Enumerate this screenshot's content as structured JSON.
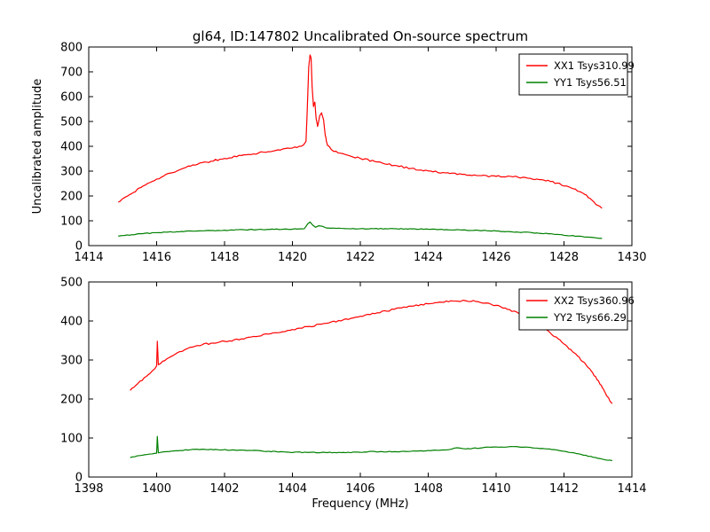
{
  "figure": {
    "title": "gl64, ID:147802 Uncalibrated On-source spectrum",
    "background": "#ffffff",
    "frame_color": "#000000"
  },
  "chart_data": [
    {
      "type": "line",
      "title": "",
      "xlabel": "",
      "ylabel": "Uncalibrated amplitude",
      "xlim": [
        1414,
        1430
      ],
      "ylim": [
        0,
        800
      ],
      "xticks": [
        1414,
        1416,
        1418,
        1420,
        1422,
        1424,
        1426,
        1428,
        1430
      ],
      "yticks": [
        0,
        100,
        200,
        300,
        400,
        500,
        600,
        700,
        800
      ],
      "grid": false,
      "legend_position": "upper right",
      "series": [
        {
          "name": "XX1 Tsys310.99",
          "color": "#ff0000",
          "points": [
            [
              1414.87,
              175
            ],
            [
              1415.2,
              205
            ],
            [
              1415.6,
              240
            ],
            [
              1416.0,
              268
            ],
            [
              1416.4,
              292
            ],
            [
              1416.8,
              312
            ],
            [
              1417.2,
              327
            ],
            [
              1417.6,
              340
            ],
            [
              1418.0,
              351
            ],
            [
              1418.5,
              363
            ],
            [
              1419.0,
              373
            ],
            [
              1419.5,
              383
            ],
            [
              1420.0,
              393
            ],
            [
              1420.2,
              400
            ],
            [
              1420.33,
              406
            ],
            [
              1420.4,
              420
            ],
            [
              1420.44,
              560
            ],
            [
              1420.48,
              720
            ],
            [
              1420.52,
              768
            ],
            [
              1420.55,
              755
            ],
            [
              1420.58,
              640
            ],
            [
              1420.62,
              560
            ],
            [
              1420.66,
              578
            ],
            [
              1420.7,
              510
            ],
            [
              1420.74,
              480
            ],
            [
              1420.8,
              522
            ],
            [
              1420.86,
              535
            ],
            [
              1420.92,
              505
            ],
            [
              1420.97,
              442
            ],
            [
              1421.03,
              405
            ],
            [
              1421.15,
              386
            ],
            [
              1421.35,
              373
            ],
            [
              1421.7,
              361
            ],
            [
              1422.0,
              351
            ],
            [
              1422.5,
              337
            ],
            [
              1423.0,
              323
            ],
            [
              1423.5,
              311
            ],
            [
              1424.0,
              301
            ],
            [
              1424.5,
              293
            ],
            [
              1425.0,
              287
            ],
            [
              1425.5,
              282
            ],
            [
              1426.0,
              279
            ],
            [
              1426.5,
              277
            ],
            [
              1427.0,
              271
            ],
            [
              1427.4,
              264
            ],
            [
              1427.8,
              252
            ],
            [
              1428.2,
              233
            ],
            [
              1428.6,
              207
            ],
            [
              1429.0,
              162
            ],
            [
              1429.12,
              150
            ]
          ]
        },
        {
          "name": "YY1 Tsys56.51",
          "color": "#008000",
          "points": [
            [
              1414.87,
              38
            ],
            [
              1415.4,
              46
            ],
            [
              1416.0,
              52
            ],
            [
              1416.6,
              56
            ],
            [
              1417.2,
              59
            ],
            [
              1418.0,
              62
            ],
            [
              1419.0,
              65
            ],
            [
              1420.0,
              66
            ],
            [
              1420.35,
              68
            ],
            [
              1420.45,
              88
            ],
            [
              1420.52,
              95
            ],
            [
              1420.6,
              82
            ],
            [
              1420.68,
              74
            ],
            [
              1420.78,
              80
            ],
            [
              1420.88,
              78
            ],
            [
              1421.0,
              71
            ],
            [
              1421.5,
              69
            ],
            [
              1422.0,
              68
            ],
            [
              1423.0,
              68
            ],
            [
              1424.0,
              66
            ],
            [
              1425.0,
              63
            ],
            [
              1426.0,
              59
            ],
            [
              1426.6,
              55
            ],
            [
              1427.2,
              51
            ],
            [
              1427.8,
              45
            ],
            [
              1428.4,
              38
            ],
            [
              1429.0,
              30
            ],
            [
              1429.12,
              29
            ]
          ]
        }
      ]
    },
    {
      "type": "line",
      "title": "",
      "xlabel": "Frequency (MHz)",
      "ylabel": "",
      "xlim": [
        1398,
        1414
      ],
      "ylim": [
        0,
        500
      ],
      "xticks": [
        1398,
        1400,
        1402,
        1404,
        1406,
        1408,
        1410,
        1412,
        1414
      ],
      "yticks": [
        0,
        100,
        200,
        300,
        400,
        500
      ],
      "grid": false,
      "legend_position": "upper right",
      "series": [
        {
          "name": "XX2 Tsys360.96",
          "color": "#ff0000",
          "points": [
            [
              1399.22,
              222
            ],
            [
              1399.45,
              240
            ],
            [
              1399.7,
              258
            ],
            [
              1399.95,
              278
            ],
            [
              1400.0,
              285
            ],
            [
              1400.02,
              348
            ],
            [
              1400.05,
              288
            ],
            [
              1400.3,
              303
            ],
            [
              1400.6,
              318
            ],
            [
              1400.9,
              329
            ],
            [
              1401.2,
              337
            ],
            [
              1401.6,
              343
            ],
            [
              1402.0,
              348
            ],
            [
              1402.5,
              354
            ],
            [
              1403.0,
              361
            ],
            [
              1403.5,
              370
            ],
            [
              1404.0,
              378
            ],
            [
              1404.5,
              386
            ],
            [
              1405.0,
              394
            ],
            [
              1405.5,
              403
            ],
            [
              1406.0,
              412
            ],
            [
              1406.5,
              421
            ],
            [
              1407.0,
              430
            ],
            [
              1407.5,
              438
            ],
            [
              1408.0,
              444
            ],
            [
              1408.4,
              448
            ],
            [
              1408.8,
              451
            ],
            [
              1409.1,
              452
            ],
            [
              1409.4,
              450
            ],
            [
              1409.7,
              446
            ],
            [
              1410.0,
              440
            ],
            [
              1410.4,
              429
            ],
            [
              1410.8,
              414
            ],
            [
              1411.2,
              394
            ],
            [
              1411.6,
              369
            ],
            [
              1412.0,
              341
            ],
            [
              1412.4,
              310
            ],
            [
              1412.8,
              272
            ],
            [
              1413.1,
              235
            ],
            [
              1413.35,
              195
            ],
            [
              1413.42,
              188
            ]
          ]
        },
        {
          "name": "YY2 Tsys66.29",
          "color": "#008000",
          "points": [
            [
              1399.22,
              50
            ],
            [
              1399.5,
              55
            ],
            [
              1399.8,
              59
            ],
            [
              1400.0,
              61
            ],
            [
              1400.02,
              104
            ],
            [
              1400.05,
              62
            ],
            [
              1400.3,
              65
            ],
            [
              1400.7,
              68
            ],
            [
              1401.0,
              70
            ],
            [
              1401.4,
              71
            ],
            [
              1401.8,
              70
            ],
            [
              1402.3,
              69
            ],
            [
              1402.8,
              68
            ],
            [
              1403.3,
              66
            ],
            [
              1403.8,
              64
            ],
            [
              1404.5,
              63
            ],
            [
              1405.5,
              63
            ],
            [
              1406.2,
              64
            ],
            [
              1406.35,
              66
            ],
            [
              1406.5,
              64
            ],
            [
              1407.0,
              65
            ],
            [
              1407.5,
              66
            ],
            [
              1408.0,
              68
            ],
            [
              1408.6,
              70
            ],
            [
              1408.85,
              75
            ],
            [
              1409.1,
              72
            ],
            [
              1409.6,
              75
            ],
            [
              1410.0,
              77
            ],
            [
              1410.5,
              78
            ],
            [
              1411.0,
              76
            ],
            [
              1411.5,
              72
            ],
            [
              1412.0,
              66
            ],
            [
              1412.5,
              58
            ],
            [
              1413.0,
              48
            ],
            [
              1413.42,
              42
            ]
          ]
        }
      ]
    }
  ]
}
